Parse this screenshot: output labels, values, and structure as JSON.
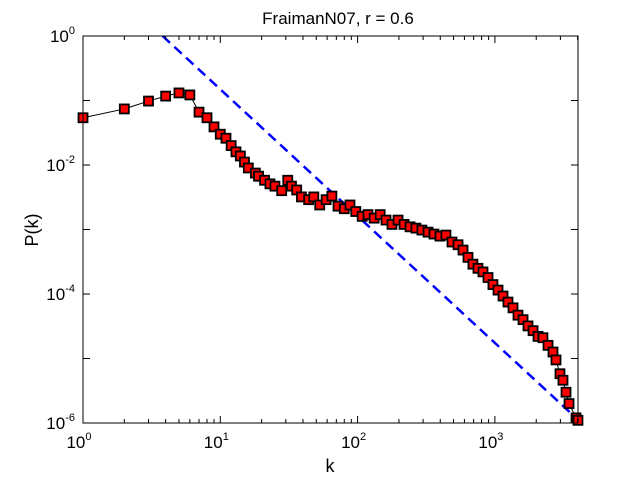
{
  "chart_data": {
    "type": "scatter",
    "title": "FraimanN07, r = 0.6",
    "xlabel": "k",
    "ylabel": "P(k)",
    "xscale": "log",
    "yscale": "log",
    "xlim": [
      1,
      4030
    ],
    "ylim": [
      1e-06,
      1
    ],
    "grid": false,
    "x_tick_labels": [
      {
        "base": "10",
        "exp": "0",
        "value": 1
      },
      {
        "base": "10",
        "exp": "1",
        "value": 10
      },
      {
        "base": "10",
        "exp": "2",
        "value": 100
      },
      {
        "base": "10",
        "exp": "3",
        "value": 1000
      }
    ],
    "y_tick_labels": [
      {
        "base": "10",
        "exp": "0",
        "value": 1
      },
      {
        "base": "10",
        "exp": "-2",
        "value": 0.01
      },
      {
        "base": "10",
        "exp": "-4",
        "value": 0.0001
      },
      {
        "base": "10",
        "exp": "-6",
        "value": 1e-06
      }
    ],
    "colors": {
      "marker_fill": "#ff0000",
      "marker_edge": "#000000",
      "line": "#000000",
      "fit": "#0000ff"
    },
    "series": [
      {
        "style": "black line with red square markers",
        "x": [
          1,
          2,
          3,
          4,
          5,
          6,
          7,
          8,
          9,
          10,
          11,
          12,
          13,
          14,
          15,
          16,
          18,
          19,
          21,
          23,
          25,
          28,
          31,
          33,
          36,
          39,
          44,
          48,
          53,
          59,
          65,
          72,
          80,
          88,
          97,
          108,
          119,
          132,
          146,
          161,
          178,
          197,
          218,
          241,
          266,
          294,
          326,
          360,
          398,
          440,
          487,
          539,
          586,
          637,
          692,
          753,
          819,
          891,
          968,
          1054,
          1146,
          1245,
          1355,
          1473,
          1603,
          1742,
          1897,
          2061,
          2239,
          2438,
          2649,
          2786,
          2979,
          3133,
          3296,
          3467,
          3899,
          4027
        ],
        "y": [
          0.054,
          0.074,
          0.098,
          0.117,
          0.131,
          0.122,
          0.066,
          0.054,
          0.039,
          0.03,
          0.026,
          0.02,
          0.016,
          0.0138,
          0.0111,
          0.009,
          0.0075,
          0.0067,
          0.0058,
          0.0051,
          0.0047,
          0.004,
          0.0058,
          0.0047,
          0.0041,
          0.0032,
          0.0029,
          0.0032,
          0.0024,
          0.0029,
          0.0033,
          0.0023,
          0.0021,
          0.0024,
          0.0019,
          0.0016,
          0.0017,
          0.0015,
          0.0017,
          0.0014,
          0.0012,
          0.0014,
          0.0012,
          0.0011,
          0.00105,
          0.00098,
          0.00091,
          0.00085,
          0.00079,
          0.00082,
          0.00064,
          0.00058,
          0.00048,
          0.00037,
          0.00029,
          0.00025,
          0.00022,
          0.00018,
          0.00014,
          0.000115,
          9.3e-05,
          7.5e-05,
          6.1e-05,
          4.7e-05,
          4e-05,
          3.2e-05,
          2.7e-05,
          2.2e-05,
          2.1e-05,
          1.6e-05,
          1.26e-05,
          9.5e-06,
          5.8e-06,
          4.6e-06,
          3e-06,
          2e-06,
          1.2e-06,
          1.1e-06
        ]
      },
      {
        "style": "blue dashed power-law fit",
        "x": [
          3.8,
          3900
        ],
        "y": [
          1,
          1.2e-06
        ]
      }
    ]
  }
}
